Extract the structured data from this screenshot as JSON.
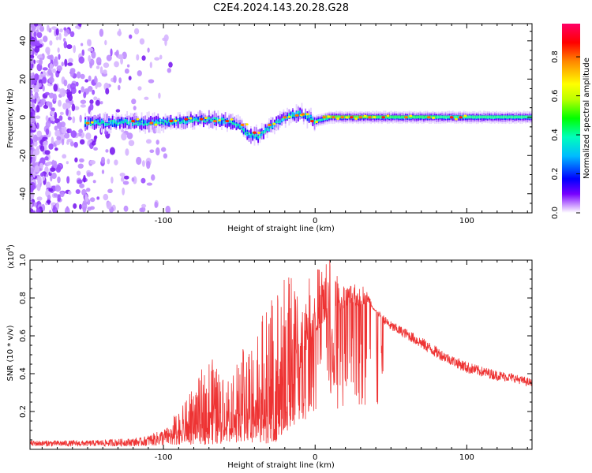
{
  "title": "C2E4.2024.143.20.28.G28",
  "chart_data": [
    {
      "type": "heatmap",
      "xlabel": "Height of straight line (km)",
      "ylabel": "Frequency (Hz)",
      "xlim": [
        -188,
        143
      ],
      "ylim": [
        -50,
        49
      ],
      "x_ticks": [
        -100,
        0,
        100
      ],
      "y_ticks": [
        -40,
        -20,
        0,
        20,
        40
      ],
      "colorbar": {
        "label": "Normalized spectral amplitude",
        "range": [
          0,
          0.97
        ],
        "ticks": [
          0.0,
          0.2,
          0.4,
          0.6,
          0.8
        ],
        "colors": [
          "#ffffff",
          "#cc99ff",
          "#7700ff",
          "#0000ff",
          "#00bbff",
          "#00ffbb",
          "#00ff00",
          "#bbff00",
          "#ffff00",
          "#ff8800",
          "#ff0000",
          "#ff0066"
        ]
      },
      "ridge": {
        "x": [
          -150,
          -130,
          -110,
          -90,
          -75,
          -60,
          -50,
          -45,
          -38,
          -30,
          -22,
          -16,
          -10,
          -5,
          0,
          5,
          10,
          20,
          40,
          60,
          80,
          100,
          143
        ],
        "y": [
          -3,
          -2.5,
          -3,
          -2,
          -1,
          -2,
          -4,
          -9,
          -10,
          -5,
          -1,
          1,
          2,
          0,
          -2,
          -1,
          0,
          0,
          0,
          0,
          0,
          0,
          0
        ]
      }
    },
    {
      "type": "line",
      "xlabel": "Height of straight line (km)",
      "ylabel": "SNR (10 * v/v)",
      "y_multiplier": "(x10",
      "y_multiplier_exp": "4",
      "y_multiplier_close": ")",
      "xlim": [
        -188,
        143
      ],
      "ylim": [
        0,
        1.0
      ],
      "x_ticks": [
        -100,
        0,
        100
      ],
      "y_ticks": [
        0.2,
        0.4,
        0.6,
        0.8,
        1.0
      ],
      "color": "#ee3333",
      "envelope": {
        "x": [
          -188,
          -150,
          -115,
          -105,
          -95,
          -88,
          -80,
          -70,
          -60,
          -50,
          -40,
          -30,
          -22,
          -15,
          -10,
          -5,
          0,
          5,
          8,
          12,
          15,
          20,
          25,
          30,
          35,
          40,
          50,
          60,
          70,
          80,
          90,
          100,
          110,
          120,
          130,
          143
        ],
        "base": [
          0.025,
          0.025,
          0.03,
          0.04,
          0.05,
          0.06,
          0.08,
          0.08,
          0.1,
          0.12,
          0.12,
          0.1,
          0.12,
          0.3,
          0.4,
          0.55,
          0.62,
          0.66,
          0.68,
          0.6,
          0.7,
          0.76,
          0.76,
          0.76,
          0.78,
          0.72,
          0.64,
          0.6,
          0.55,
          0.5,
          0.46,
          0.42,
          0.4,
          0.38,
          0.37,
          0.34
        ],
        "peak": [
          0.04,
          0.04,
          0.06,
          0.1,
          0.15,
          0.2,
          0.3,
          0.45,
          0.35,
          0.45,
          0.58,
          0.68,
          0.8,
          0.85,
          0.72,
          0.85,
          0.9,
          0.95,
          1.0,
          0.95,
          0.88,
          0.86,
          0.85,
          0.88,
          0.82,
          0.74,
          0.68,
          0.64,
          0.6,
          0.55,
          0.5,
          0.47,
          0.44,
          0.42,
          0.4,
          0.37
        ]
      }
    }
  ]
}
